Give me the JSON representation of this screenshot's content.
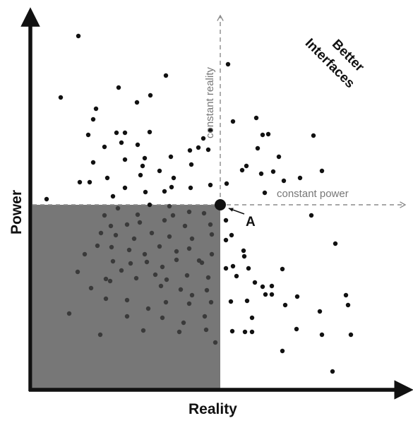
{
  "diagram": {
    "y_axis_label": "Power",
    "x_axis_label": "Reality",
    "corner_label": [
      "Better",
      "Interfaces"
    ],
    "line_labels": {
      "vertical": "constant reality",
      "horizontal": "constant power"
    },
    "point_label": "A",
    "colors": {
      "axes": "#111111",
      "dots": "#111111",
      "shaded_region": "#777777",
      "dashed_lines": "#8a8a8a",
      "annotation_text": "#777777"
    }
  }
}
